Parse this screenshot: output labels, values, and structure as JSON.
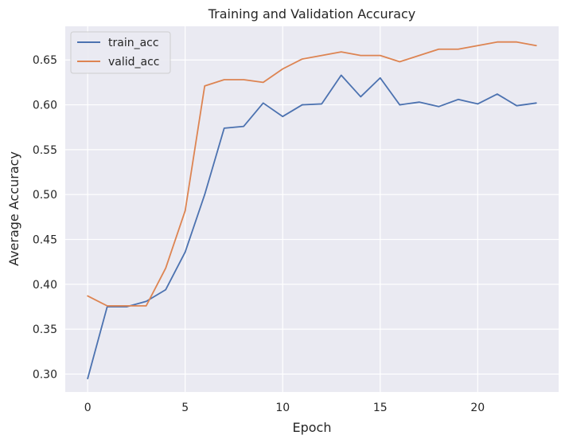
{
  "chart_data": {
    "type": "line",
    "title": "Training and Validation Accuracy",
    "xlabel": "Epoch",
    "ylabel": "Average Accuracy",
    "xlim": [
      -1.15,
      24.15
    ],
    "ylim": [
      0.28,
      0.6875
    ],
    "xticks": [
      0,
      5,
      10,
      15,
      20
    ],
    "yticks": [
      0.3,
      0.35,
      0.4,
      0.45,
      0.5,
      0.55,
      0.6,
      0.65
    ],
    "xtick_labels": [
      "0",
      "5",
      "10",
      "15",
      "20"
    ],
    "ytick_labels": [
      "0.30",
      "0.35",
      "0.40",
      "0.45",
      "0.50",
      "0.55",
      "0.60",
      "0.65"
    ],
    "grid": true,
    "legend_position": "top-left",
    "x": [
      0,
      1,
      2,
      3,
      4,
      5,
      6,
      7,
      8,
      9,
      10,
      11,
      12,
      13,
      14,
      15,
      16,
      17,
      18,
      19,
      20,
      21,
      22,
      23
    ],
    "series": [
      {
        "name": "train_acc",
        "color": "#4c72b0",
        "values": [
          0.295,
          0.375,
          0.375,
          0.381,
          0.394,
          0.436,
          0.5,
          0.574,
          0.576,
          0.602,
          0.587,
          0.6,
          0.601,
          0.633,
          0.609,
          0.63,
          0.6,
          0.603,
          0.598,
          0.606,
          0.601,
          0.612,
          0.599,
          0.602
        ]
      },
      {
        "name": "valid_acc",
        "color": "#dd8452",
        "values": [
          0.387,
          0.376,
          0.376,
          0.376,
          0.418,
          0.482,
          0.621,
          0.628,
          0.628,
          0.625,
          0.64,
          0.651,
          0.655,
          0.659,
          0.655,
          0.655,
          0.648,
          0.655,
          0.662,
          0.662,
          0.666,
          0.67,
          0.67,
          0.666
        ]
      }
    ]
  }
}
